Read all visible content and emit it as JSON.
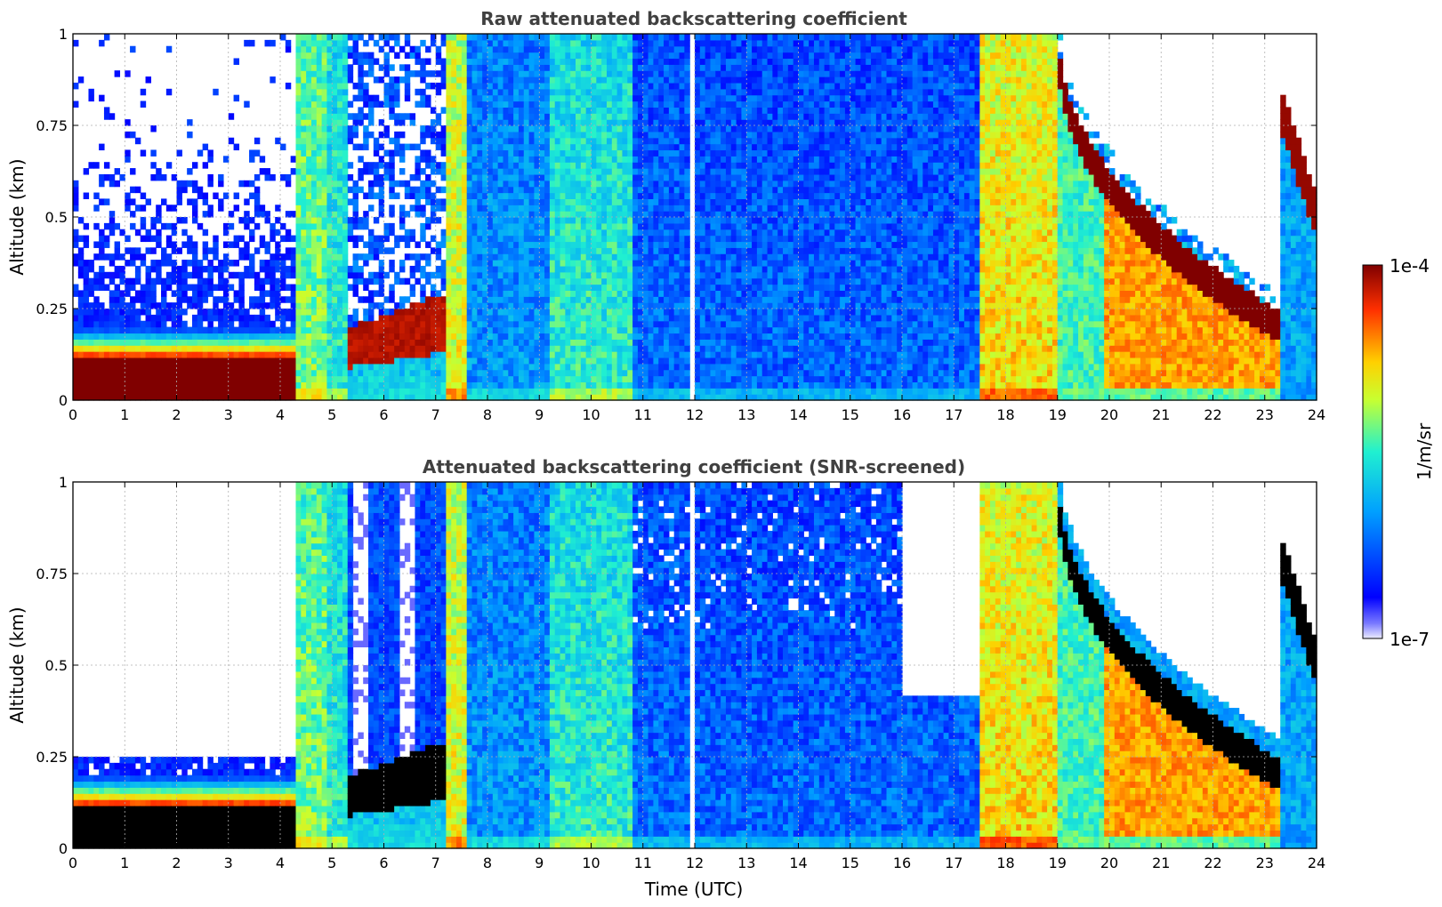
{
  "chart_data": [
    {
      "type": "heatmap",
      "title": "Raw attenuated backscattering coefficient",
      "xlabel": "",
      "ylabel": "Altitude (km)",
      "xlim": [
        0,
        24
      ],
      "ylim": [
        0,
        1
      ],
      "xticks": [
        0,
        1,
        2,
        3,
        4,
        5,
        6,
        7,
        8,
        9,
        10,
        11,
        12,
        13,
        14,
        15,
        16,
        17,
        18,
        19,
        20,
        21,
        22,
        23,
        24
      ],
      "xtick_labels": [
        "0",
        "1",
        "2",
        "3",
        "4",
        "5",
        "6",
        "7",
        "8",
        "9",
        "10",
        "11",
        "12",
        "13",
        "14",
        "15",
        "16",
        "17",
        "18",
        "19",
        "20",
        "21",
        "22",
        "23",
        "24"
      ],
      "yticks": [
        0,
        0.25,
        0.5,
        0.75,
        1
      ],
      "ytick_labels": [
        "0",
        "0.25",
        "0.5",
        "0.75",
        "1"
      ],
      "grid": true,
      "screened": false,
      "segments": [
        {
          "x": [
            0.0,
            4.3
          ],
          "pattern": "surface_layer",
          "layer_top": 0.2,
          "noise_top": 1.0
        },
        {
          "x": [
            4.3,
            4.9
          ],
          "pattern": "column",
          "level": 0.58
        },
        {
          "x": [
            4.9,
            5.3
          ],
          "pattern": "column",
          "level": 0.5
        },
        {
          "x": [
            5.3,
            7.2
          ],
          "pattern": "rising_layer",
          "layer_top": 0.28,
          "noise_top": 1.0
        },
        {
          "x": [
            7.2,
            7.6
          ],
          "pattern": "column",
          "level": 0.68
        },
        {
          "x": [
            7.6,
            9.2
          ],
          "pattern": "column",
          "level": 0.33
        },
        {
          "x": [
            9.2,
            10.8
          ],
          "pattern": "column",
          "level": 0.5
        },
        {
          "x": [
            10.8,
            11.9
          ],
          "pattern": "column",
          "level": 0.27
        },
        {
          "x": [
            11.9,
            12.05
          ],
          "pattern": "gap"
        },
        {
          "x": [
            12.05,
            17.5
          ],
          "pattern": "column",
          "level": 0.26
        },
        {
          "x": [
            17.5,
            19.0
          ],
          "pattern": "column",
          "level": 0.72
        },
        {
          "x": [
            19.0,
            23.3
          ],
          "pattern": "descending_cloud",
          "cloud_from": 1.0,
          "cloud_to": 0.2
        },
        {
          "x": [
            23.3,
            24.0
          ],
          "pattern": "rising_cloud",
          "cloud_from": 0.8,
          "cloud_to": 0.5
        }
      ]
    },
    {
      "type": "heatmap",
      "title": "Attenuated backscattering coefficient (SNR-screened)",
      "xlabel": "Time (UTC)",
      "ylabel": "Altitude (km)",
      "xlim": [
        0,
        24
      ],
      "ylim": [
        0,
        1
      ],
      "xticks": [
        0,
        1,
        2,
        3,
        4,
        5,
        6,
        7,
        8,
        9,
        10,
        11,
        12,
        13,
        14,
        15,
        16,
        17,
        18,
        19,
        20,
        21,
        22,
        23,
        24
      ],
      "xtick_labels": [
        "0",
        "1",
        "2",
        "3",
        "4",
        "5",
        "6",
        "7",
        "8",
        "9",
        "10",
        "11",
        "12",
        "13",
        "14",
        "15",
        "16",
        "17",
        "18",
        "19",
        "20",
        "21",
        "22",
        "23",
        "24"
      ],
      "yticks": [
        0,
        0.25,
        0.5,
        0.75,
        1
      ],
      "ytick_labels": [
        "0",
        "0.25",
        "0.5",
        "0.75",
        "1"
      ],
      "grid": true,
      "screened": true,
      "segments": [
        {
          "x": [
            0.0,
            4.3
          ],
          "pattern": "surface_layer",
          "layer_top": 0.2,
          "noise_top": 0.25
        },
        {
          "x": [
            4.3,
            4.9
          ],
          "pattern": "column",
          "level": 0.58
        },
        {
          "x": [
            4.9,
            5.3
          ],
          "pattern": "column",
          "level": 0.5
        },
        {
          "x": [
            5.3,
            7.2
          ],
          "pattern": "rising_layer",
          "layer_top": 0.28,
          "noise_top": 1.0
        },
        {
          "x": [
            7.2,
            7.6
          ],
          "pattern": "column",
          "level": 0.68
        },
        {
          "x": [
            7.6,
            9.2
          ],
          "pattern": "column",
          "level": 0.33
        },
        {
          "x": [
            9.2,
            10.8
          ],
          "pattern": "column",
          "level": 0.5
        },
        {
          "x": [
            10.8,
            11.9
          ],
          "pattern": "column",
          "level": 0.27
        },
        {
          "x": [
            11.9,
            12.05
          ],
          "pattern": "gap"
        },
        {
          "x": [
            12.05,
            16.0
          ],
          "pattern": "column",
          "level": 0.26
        },
        {
          "x": [
            16.0,
            17.5
          ],
          "pattern": "column",
          "level": 0.26,
          "top": 0.42
        },
        {
          "x": [
            17.5,
            19.0
          ],
          "pattern": "column",
          "level": 0.72
        },
        {
          "x": [
            19.0,
            23.3
          ],
          "pattern": "descending_cloud",
          "cloud_from": 1.0,
          "cloud_to": 0.2
        },
        {
          "x": [
            23.3,
            24.0
          ],
          "pattern": "rising_cloud",
          "cloud_from": 0.8,
          "cloud_to": 0.5
        }
      ]
    }
  ],
  "colorbar": {
    "label": "1/m/sr",
    "min_label": "1e-7",
    "max_label": "1e-4",
    "min_value": 1e-07,
    "max_value": 0.0001,
    "scale": "log",
    "colormap": "jet"
  },
  "colors": {
    "title": "#404040",
    "grid": "#b0b0b0",
    "saturated_screened": "#000000",
    "saturated_raw": "#800000"
  }
}
